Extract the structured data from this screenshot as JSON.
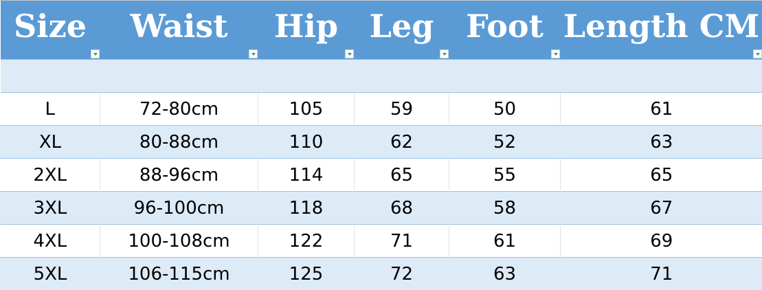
{
  "headers": [
    "Size",
    "Waist",
    "Hip",
    "Leg",
    "Foot",
    "Length CM"
  ],
  "rows": [
    [
      "L",
      "72-80cm",
      "105",
      "59",
      "50",
      "61"
    ],
    [
      "XL",
      "80-88cm",
      "110",
      "62",
      "52",
      "63"
    ],
    [
      "2XL",
      "88-96cm",
      "114",
      "65",
      "55",
      "65"
    ],
    [
      "3XL",
      "96-100cm",
      "118",
      "68",
      "58",
      "67"
    ],
    [
      "4XL",
      "100-108cm",
      "122",
      "71",
      "61",
      "69"
    ],
    [
      "5XL",
      "106-115cm",
      "125",
      "72",
      "63",
      "71"
    ]
  ],
  "colors": {
    "header": "#5B9BD5",
    "band": "#DDEBF7",
    "border": "#9BC2E6",
    "filter_arrow": "#21a366"
  }
}
